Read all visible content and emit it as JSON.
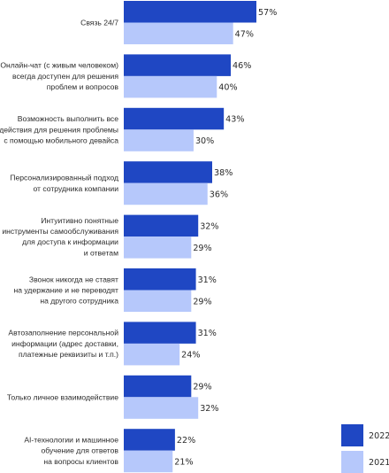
{
  "chart_data": {
    "type": "bar",
    "orientation": "horizontal",
    "categories": [
      [
        "Связь 24/7"
      ],
      [
        "Онлайн-чат (с живым человеком)",
        "всегда доступен для решения",
        "проблем и вопросов"
      ],
      [
        "Возможность выполнить все",
        "действия для решения проблемы",
        "с помощью мобильного девайса"
      ],
      [
        "Персонализированный подход",
        "от сотрудника компании"
      ],
      [
        "Интуитивно понятные",
        "инструменты самообслуживания",
        "для доступа к информации",
        "и ответам"
      ],
      [
        "Звонок никогда не ставят",
        "на удержание и не переводят",
        "на другого сотрудника"
      ],
      [
        "Автозаполнение персональной",
        "информации (адрес доставки,",
        "платежные реквизиты и т.п.)"
      ],
      [
        "Только личное взаимодействие"
      ],
      [
        "AI-технологии и машинное",
        "обучение для ответов",
        "на вопросы клиентов"
      ]
    ],
    "series": [
      {
        "name": "2022",
        "color": "#1f47c3",
        "values": [
          57,
          46,
          43,
          38,
          32,
          31,
          31,
          29,
          22
        ]
      },
      {
        "name": "2021",
        "color": "#b6c8fb",
        "values": [
          47,
          40,
          30,
          36,
          29,
          29,
          24,
          32,
          21
        ]
      }
    ],
    "value_suffix": "%",
    "xlim": [
      0,
      57
    ],
    "legend_position": "bottom-right",
    "grid": false
  }
}
